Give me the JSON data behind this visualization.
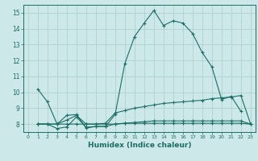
{
  "xlabel": "Humidex (Indice chaleur)",
  "background_color": "#cce8e8",
  "grid_color": "#aacccc",
  "line_color": "#1a6e66",
  "xlim": [
    -0.5,
    23.5
  ],
  "ylim": [
    7.5,
    15.5
  ],
  "xticks": [
    0,
    1,
    2,
    3,
    4,
    5,
    6,
    7,
    8,
    9,
    10,
    11,
    12,
    13,
    14,
    15,
    16,
    17,
    18,
    19,
    20,
    21,
    22,
    23
  ],
  "yticks": [
    8,
    9,
    10,
    11,
    12,
    13,
    14,
    15
  ],
  "curves": [
    {
      "x": [
        1,
        2,
        3,
        4,
        5,
        6,
        7,
        8,
        9,
        10,
        11,
        12,
        13,
        14,
        15,
        16,
        17,
        18,
        19,
        20,
        21,
        22
      ],
      "y": [
        10.2,
        9.4,
        8.0,
        8.55,
        8.6,
        7.75,
        7.85,
        7.85,
        8.6,
        11.8,
        13.5,
        14.35,
        15.15,
        14.2,
        14.5,
        14.35,
        13.7,
        12.5,
        11.6,
        9.55,
        9.75,
        8.8
      ]
    },
    {
      "x": [
        1,
        2,
        3,
        4,
        5,
        6,
        7,
        8,
        9,
        10,
        11,
        12,
        13,
        14,
        15,
        16,
        17,
        18,
        19,
        20,
        21,
        22,
        23
      ],
      "y": [
        8.0,
        8.0,
        8.0,
        8.25,
        8.55,
        8.0,
        8.0,
        8.05,
        8.7,
        8.85,
        9.0,
        9.1,
        9.2,
        9.3,
        9.35,
        9.4,
        9.45,
        9.5,
        9.6,
        9.65,
        9.7,
        9.8,
        8.0
      ]
    },
    {
      "x": [
        1,
        2,
        3,
        4,
        5,
        6,
        7,
        8,
        9,
        10,
        11,
        12,
        13,
        14,
        15,
        16,
        17,
        18,
        19,
        20,
        21,
        22,
        23
      ],
      "y": [
        8.0,
        8.0,
        7.72,
        7.82,
        8.45,
        7.8,
        7.85,
        7.85,
        8.0,
        8.05,
        8.1,
        8.15,
        8.2,
        8.2,
        8.2,
        8.2,
        8.2,
        8.2,
        8.2,
        8.2,
        8.2,
        8.2,
        8.0
      ]
    },
    {
      "x": [
        1,
        2,
        3,
        4,
        5,
        6,
        7,
        8,
        9,
        10,
        11,
        12,
        13,
        14,
        15,
        16,
        17,
        18,
        19,
        20,
        21,
        22,
        23
      ],
      "y": [
        8.0,
        8.0,
        8.0,
        8.0,
        8.0,
        8.0,
        8.0,
        8.0,
        8.0,
        8.05,
        8.05,
        8.05,
        8.05,
        8.05,
        8.05,
        8.05,
        8.05,
        8.05,
        8.05,
        8.05,
        8.05,
        8.05,
        8.0
      ]
    }
  ]
}
